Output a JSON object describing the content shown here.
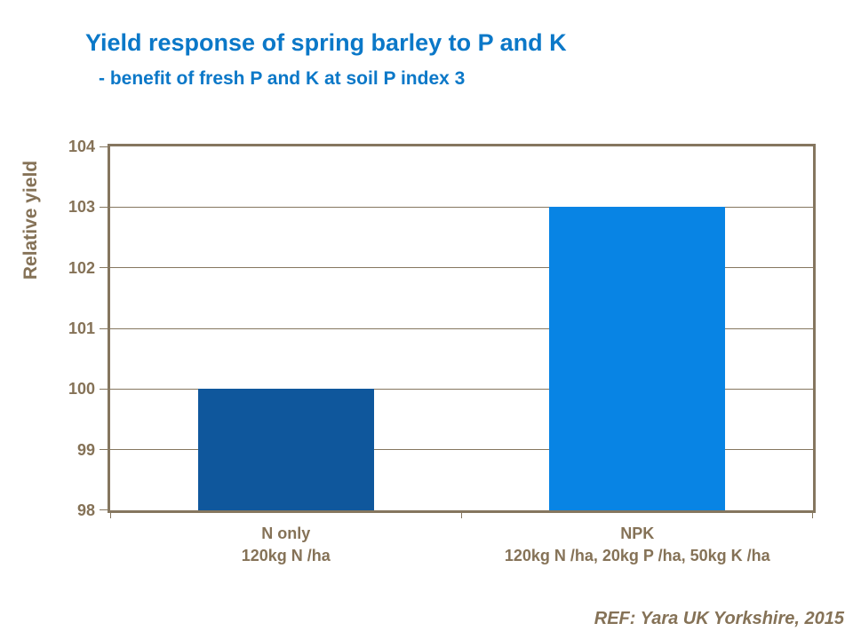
{
  "slide": {
    "title": "Yield response of spring barley to P and K",
    "subtitle": "- benefit of fresh P and K at soil P index 3",
    "reference": "REF: Yara UK Yorkshire, 2015"
  },
  "colors": {
    "heading_blue": "#0b78c8",
    "axis_text_brown": "#857257",
    "axis_line_brown": "#85765f",
    "bar_n_only_blue": "#0f579c",
    "bar_npk_blue": "#0884e4",
    "background": "#ffffff"
  },
  "chart_data": {
    "type": "bar",
    "title": "Yield response of spring barley to P and K",
    "subtitle": "- benefit of fresh P and K at soil P index 3",
    "xlabel": "",
    "ylabel": "Relative yield",
    "ylim": [
      98,
      104
    ],
    "yticks": [
      98,
      99,
      100,
      101,
      102,
      103,
      104
    ],
    "grid": "horizontal",
    "legend_position": "none",
    "categories": [
      "N only",
      "NPK"
    ],
    "category_labels": [
      [
        "N only",
        "120kg N /ha"
      ],
      [
        "NPK",
        "120kg N /ha, 20kg P /ha, 50kg K /ha"
      ]
    ],
    "values": [
      100,
      103
    ],
    "bar_colors": [
      "#0f579c",
      "#0884e4"
    ],
    "bar_width_fraction": 0.5
  }
}
